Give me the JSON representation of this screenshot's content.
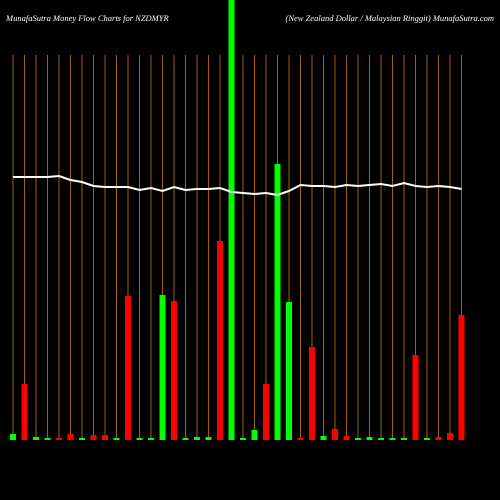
{
  "chart_data": {
    "type": "bar",
    "title": "MunafaSutra  Money Flow  Charts for NZDMYR",
    "subtitle": "(New  Zealand Dollar / Malaysian  Ringgit) MunafaSutra.com",
    "ylim": [
      0,
      440
    ],
    "background": "#000000",
    "guide_color": "#a0620a",
    "line_color": "#ffffff",
    "series": [
      {
        "values": [
          6,
          56,
          3,
          2,
          2,
          6,
          2,
          5,
          5,
          2,
          144,
          2,
          2,
          145,
          139,
          2,
          3,
          3,
          199,
          440,
          2,
          10,
          56,
          276,
          138,
          2,
          93,
          4,
          11,
          4,
          2,
          3,
          2,
          2,
          2,
          85,
          2,
          3,
          7,
          125
        ],
        "colors": [
          "#00ff00",
          "#ff0000",
          "#00ff00",
          "#00ff00",
          "#ff0000",
          "#ff0000",
          "#00ff00",
          "#ff0000",
          "#ff0000",
          "#00ff00",
          "#ff0000",
          "#00ff00",
          "#00ff00",
          "#00ff00",
          "#ff0000",
          "#00ff00",
          "#00ff00",
          "#00ff00",
          "#ff0000",
          "#00ff00",
          "#00ff00",
          "#00ff00",
          "#ff0000",
          "#00ff00",
          "#00ff00",
          "#ff0000",
          "#ff0000",
          "#00ff00",
          "#ff0000",
          "#ff0000",
          "#00ff00",
          "#00ff00",
          "#00ff00",
          "#00ff00",
          "#00ff00",
          "#ff0000",
          "#00ff00",
          "#ff0000",
          "#ff0000",
          "#ff0000"
        ]
      },
      {
        "type": "line",
        "values": [
          263,
          263,
          263,
          263,
          264,
          260,
          258,
          254,
          253,
          253,
          253,
          250,
          252,
          249,
          253,
          250,
          251,
          251,
          252,
          248,
          247,
          246,
          247,
          245,
          249,
          255,
          254,
          254,
          253,
          255,
          254,
          255,
          256,
          254,
          257,
          254,
          253,
          254,
          253,
          251
        ]
      }
    ]
  }
}
